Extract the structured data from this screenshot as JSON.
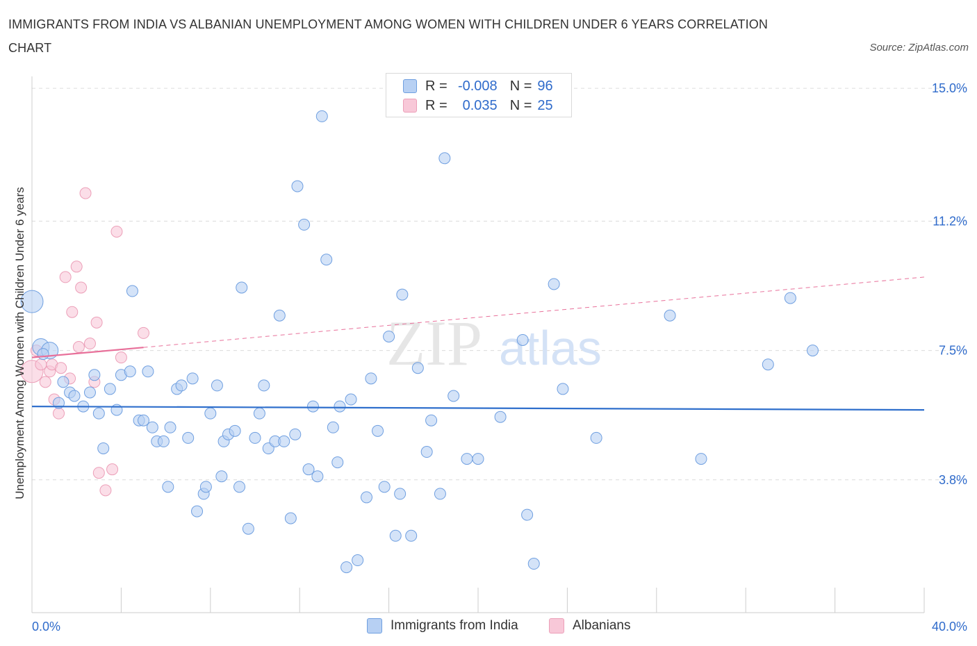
{
  "title": "IMMIGRANTS FROM INDIA VS ALBANIAN UNEMPLOYMENT AMONG WOMEN WITH CHILDREN UNDER 6 YEARS CORRELATION CHART",
  "source": "Source: ZipAtlas.com",
  "watermark": {
    "zip": "ZIP",
    "atlas": "atlas"
  },
  "legend": {
    "rows": [
      {
        "r_label": "R =",
        "r_value": "-0.008",
        "n_label": "N =",
        "n_value": "96"
      },
      {
        "r_label": "R =",
        "r_value": "0.035",
        "n_label": "N =",
        "n_value": "25"
      }
    ]
  },
  "bottom_legend": [
    "Immigrants from India",
    "Albanians"
  ],
  "colors": {
    "blue_fill": "#b7d0f3",
    "blue_stroke": "#6f9fe0",
    "blue_line": "#2f6fcc",
    "pink_fill": "#f8c8d8",
    "pink_stroke": "#ec9fb8",
    "pink_line": "#e8709a",
    "grid": "#dcdcdc",
    "axis_text": "#2f6bcb"
  },
  "chart_data": {
    "type": "scatter",
    "title": "IMMIGRANTS FROM INDIA VS ALBANIAN UNEMPLOYMENT AMONG WOMEN WITH CHILDREN UNDER 6 YEARS CORRELATION CHART",
    "xlabel": "",
    "ylabel": "Unemployment Among Women with Children Under 6 years",
    "xlim": [
      0,
      40
    ],
    "ylim": [
      0,
      15.5
    ],
    "x_tick_labels": [
      "0.0%",
      "40.0%"
    ],
    "y_ticks": [
      3.8,
      7.5,
      11.2,
      15.0
    ],
    "y_tick_labels": [
      "3.8%",
      "7.5%",
      "11.2%",
      "15.0%"
    ],
    "grid": true,
    "series": [
      {
        "name": "Immigrants from India",
        "color": "#b7d0f3",
        "R": -0.008,
        "N": 96,
        "trend": {
          "x": [
            0,
            40
          ],
          "y": [
            5.9,
            5.8
          ]
        },
        "points": [
          {
            "x": 0.0,
            "y": 8.9,
            "s": "xl"
          },
          {
            "x": 0.4,
            "y": 7.6,
            "s": "l"
          },
          {
            "x": 0.8,
            "y": 7.5,
            "s": "l"
          },
          {
            "x": 0.5,
            "y": 7.4
          },
          {
            "x": 1.2,
            "y": 6.0
          },
          {
            "x": 1.4,
            "y": 6.6
          },
          {
            "x": 1.7,
            "y": 6.3
          },
          {
            "x": 1.9,
            "y": 6.2
          },
          {
            "x": 2.3,
            "y": 5.9
          },
          {
            "x": 2.6,
            "y": 6.3
          },
          {
            "x": 2.8,
            "y": 6.8
          },
          {
            "x": 3.0,
            "y": 5.7
          },
          {
            "x": 3.2,
            "y": 4.7
          },
          {
            "x": 3.5,
            "y": 6.4
          },
          {
            "x": 3.8,
            "y": 5.8
          },
          {
            "x": 4.0,
            "y": 6.8
          },
          {
            "x": 4.4,
            "y": 6.9
          },
          {
            "x": 4.5,
            "y": 9.2
          },
          {
            "x": 4.8,
            "y": 5.5
          },
          {
            "x": 5.0,
            "y": 5.5
          },
          {
            "x": 5.2,
            "y": 6.9
          },
          {
            "x": 5.4,
            "y": 5.3
          },
          {
            "x": 5.6,
            "y": 4.9
          },
          {
            "x": 5.9,
            "y": 4.9
          },
          {
            "x": 6.1,
            "y": 3.6
          },
          {
            "x": 6.2,
            "y": 5.3
          },
          {
            "x": 6.5,
            "y": 6.4
          },
          {
            "x": 6.7,
            "y": 6.5
          },
          {
            "x": 7.0,
            "y": 5.0
          },
          {
            "x": 7.2,
            "y": 6.7
          },
          {
            "x": 7.4,
            "y": 2.9
          },
          {
            "x": 7.7,
            "y": 3.4
          },
          {
            "x": 7.8,
            "y": 3.6
          },
          {
            "x": 8.0,
            "y": 5.7
          },
          {
            "x": 8.3,
            "y": 6.5
          },
          {
            "x": 8.5,
            "y": 3.9
          },
          {
            "x": 8.6,
            "y": 4.9
          },
          {
            "x": 8.8,
            "y": 5.1
          },
          {
            "x": 9.1,
            "y": 5.2
          },
          {
            "x": 9.3,
            "y": 3.6
          },
          {
            "x": 9.4,
            "y": 9.3
          },
          {
            "x": 9.7,
            "y": 2.4
          },
          {
            "x": 10.0,
            "y": 5.0
          },
          {
            "x": 10.2,
            "y": 5.7
          },
          {
            "x": 10.4,
            "y": 6.5
          },
          {
            "x": 10.6,
            "y": 4.7
          },
          {
            "x": 10.9,
            "y": 4.9
          },
          {
            "x": 11.1,
            "y": 8.5
          },
          {
            "x": 11.3,
            "y": 4.9
          },
          {
            "x": 11.6,
            "y": 2.7
          },
          {
            "x": 11.8,
            "y": 5.1
          },
          {
            "x": 11.9,
            "y": 12.2
          },
          {
            "x": 12.2,
            "y": 11.1
          },
          {
            "x": 12.4,
            "y": 4.1
          },
          {
            "x": 12.6,
            "y": 5.9
          },
          {
            "x": 12.8,
            "y": 3.9
          },
          {
            "x": 13.0,
            "y": 14.2
          },
          {
            "x": 13.2,
            "y": 10.1
          },
          {
            "x": 13.5,
            "y": 5.3
          },
          {
            "x": 13.7,
            "y": 4.3
          },
          {
            "x": 13.8,
            "y": 5.9
          },
          {
            "x": 14.1,
            "y": 1.3
          },
          {
            "x": 14.3,
            "y": 6.1
          },
          {
            "x": 14.6,
            "y": 1.5
          },
          {
            "x": 15.0,
            "y": 3.3
          },
          {
            "x": 15.2,
            "y": 6.7
          },
          {
            "x": 15.5,
            "y": 5.2
          },
          {
            "x": 15.8,
            "y": 3.6
          },
          {
            "x": 16.0,
            "y": 7.9
          },
          {
            "x": 16.3,
            "y": 2.2
          },
          {
            "x": 16.5,
            "y": 3.4
          },
          {
            "x": 16.6,
            "y": 9.1
          },
          {
            "x": 17.0,
            "y": 2.2
          },
          {
            "x": 17.3,
            "y": 7.0
          },
          {
            "x": 17.7,
            "y": 4.6
          },
          {
            "x": 17.9,
            "y": 5.5
          },
          {
            "x": 18.3,
            "y": 3.4
          },
          {
            "x": 18.5,
            "y": 13.0
          },
          {
            "x": 18.9,
            "y": 6.2
          },
          {
            "x": 19.5,
            "y": 4.4
          },
          {
            "x": 20.0,
            "y": 4.4
          },
          {
            "x": 21.0,
            "y": 5.6
          },
          {
            "x": 22.0,
            "y": 7.8
          },
          {
            "x": 22.2,
            "y": 2.8
          },
          {
            "x": 22.5,
            "y": 1.4
          },
          {
            "x": 23.4,
            "y": 9.4
          },
          {
            "x": 23.8,
            "y": 6.4
          },
          {
            "x": 25.3,
            "y": 5.0
          },
          {
            "x": 28.6,
            "y": 8.5
          },
          {
            "x": 30.0,
            "y": 4.4
          },
          {
            "x": 33.0,
            "y": 7.1
          },
          {
            "x": 34.0,
            "y": 9.0
          },
          {
            "x": 35.0,
            "y": 7.5
          }
        ]
      },
      {
        "name": "Albanians",
        "color": "#f8c8d8",
        "R": 0.035,
        "N": 25,
        "trend": {
          "x": [
            0,
            40
          ],
          "y": [
            7.3,
            9.6
          ],
          "solid_until_x": 5
        },
        "points": [
          {
            "x": 0.0,
            "y": 6.9,
            "s": "xl"
          },
          {
            "x": 0.2,
            "y": 7.5
          },
          {
            "x": 0.4,
            "y": 7.1
          },
          {
            "x": 0.6,
            "y": 6.6
          },
          {
            "x": 0.8,
            "y": 6.9
          },
          {
            "x": 0.9,
            "y": 7.1
          },
          {
            "x": 1.0,
            "y": 6.1
          },
          {
            "x": 1.2,
            "y": 5.7
          },
          {
            "x": 1.3,
            "y": 7.0
          },
          {
            "x": 1.5,
            "y": 9.6
          },
          {
            "x": 1.7,
            "y": 6.7
          },
          {
            "x": 1.8,
            "y": 8.6
          },
          {
            "x": 2.0,
            "y": 9.9
          },
          {
            "x": 2.1,
            "y": 7.6
          },
          {
            "x": 2.2,
            "y": 9.3
          },
          {
            "x": 2.4,
            "y": 12.0
          },
          {
            "x": 2.6,
            "y": 7.7
          },
          {
            "x": 2.8,
            "y": 6.6
          },
          {
            "x": 2.9,
            "y": 8.3
          },
          {
            "x": 3.0,
            "y": 4.0
          },
          {
            "x": 3.3,
            "y": 3.5
          },
          {
            "x": 3.6,
            "y": 4.1
          },
          {
            "x": 3.8,
            "y": 10.9
          },
          {
            "x": 4.0,
            "y": 7.3
          },
          {
            "x": 5.0,
            "y": 8.0
          }
        ]
      }
    ]
  }
}
